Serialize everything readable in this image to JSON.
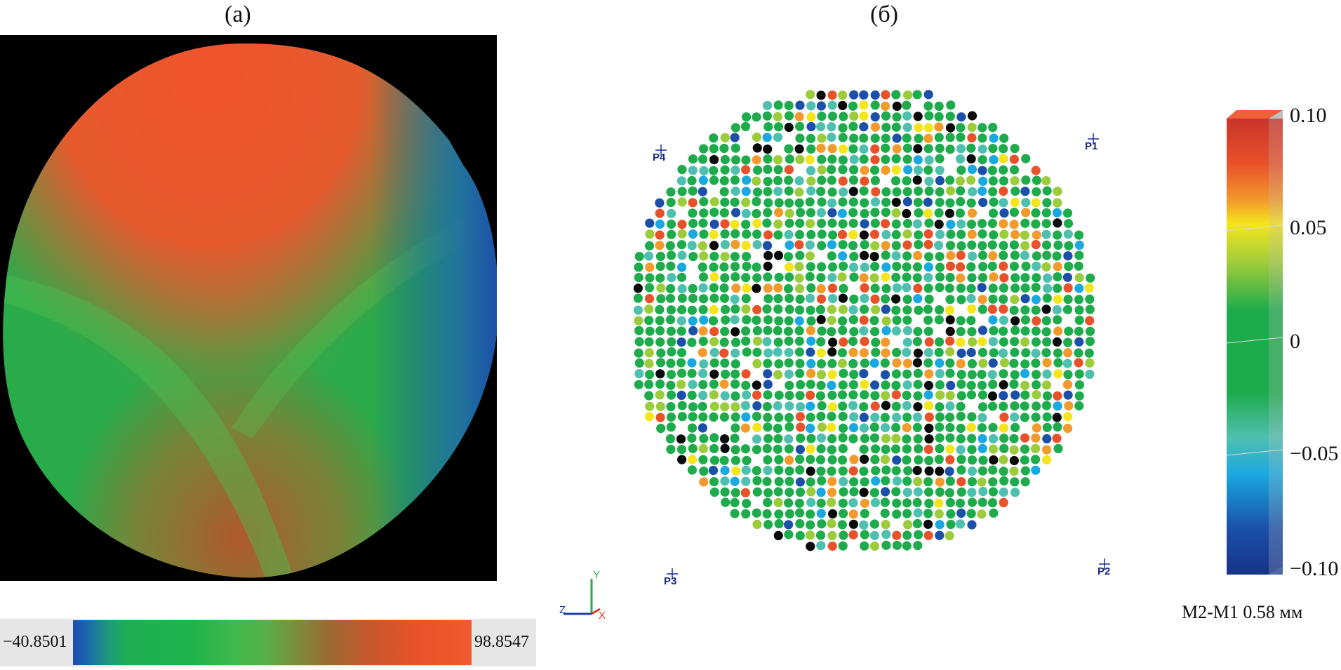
{
  "panel_a": {
    "label": "(a)",
    "scale": {
      "min": "−40.8501",
      "max": "98.8547"
    }
  },
  "panel_b": {
    "label": "(б)",
    "markers": [
      "P1",
      "P2",
      "P3",
      "P4"
    ],
    "colorbar_ticks": [
      "0.10",
      "0.05",
      "0",
      "−0.05",
      "−0.10"
    ],
    "caption": "M2-M1 0.58 мм",
    "axes": {
      "z": "Z",
      "y": "Y",
      "x": "X"
    }
  },
  "colors": {
    "red": "#e8522a",
    "orange": "#f39a2c",
    "yellow": "#f5e51c",
    "yellow_green": "#9ccb3b",
    "green": "#1eab4c",
    "teal": "#4fc0b0",
    "cyan": "#1aa8e0",
    "blue": "#1b4fa8",
    "black": "#0a0a0a"
  }
}
